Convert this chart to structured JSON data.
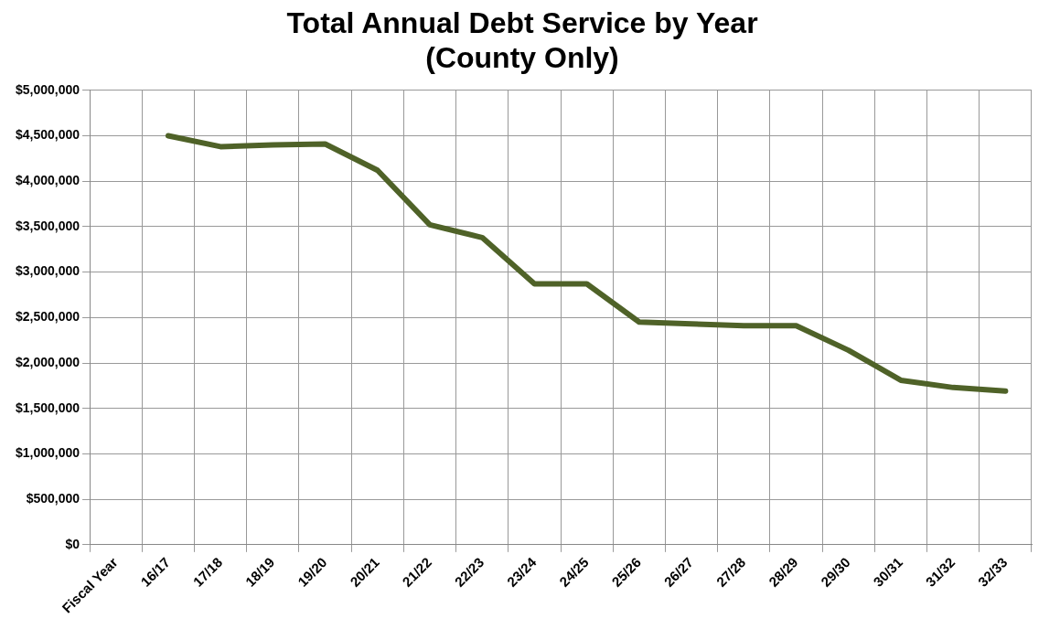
{
  "chart_data": {
    "type": "line",
    "title": "Total Annual Debt Service by Year\n(County Only)",
    "categories": [
      "Fiscal Year",
      "16/17",
      "17/18",
      "18/19",
      "19/20",
      "20/21",
      "21/22",
      "22/23",
      "23/24",
      "24/25",
      "25/26",
      "26/27",
      "27/28",
      "28/29",
      "29/30",
      "30/31",
      "31/32",
      "32/33"
    ],
    "series": [
      {
        "color": "#4f6228",
        "values": [
          null,
          4500000,
          4380000,
          4400000,
          4410000,
          4120000,
          3520000,
          3380000,
          2870000,
          2870000,
          2450000,
          2430000,
          2410000,
          2410000,
          2140000,
          1810000,
          1730000,
          1690000
        ]
      }
    ],
    "ylim": [
      0,
      5000000
    ],
    "yticks": [
      {
        "value": 0,
        "label": "$0"
      },
      {
        "value": 500000,
        "label": "$500,000"
      },
      {
        "value": 1000000,
        "label": "$1,000,000"
      },
      {
        "value": 1500000,
        "label": "$1,500,000"
      },
      {
        "value": 2000000,
        "label": "$2,000,000"
      },
      {
        "value": 2500000,
        "label": "$2,500,000"
      },
      {
        "value": 3000000,
        "label": "$3,000,000"
      },
      {
        "value": 3500000,
        "label": "$3,500,000"
      },
      {
        "value": 4000000,
        "label": "$4,000,000"
      },
      {
        "value": 4500000,
        "label": "$4,500,000"
      },
      {
        "value": 5000000,
        "label": "$5,000,000"
      }
    ],
    "grid": true,
    "legend": false,
    "marker": "none",
    "line_style": "solid"
  }
}
